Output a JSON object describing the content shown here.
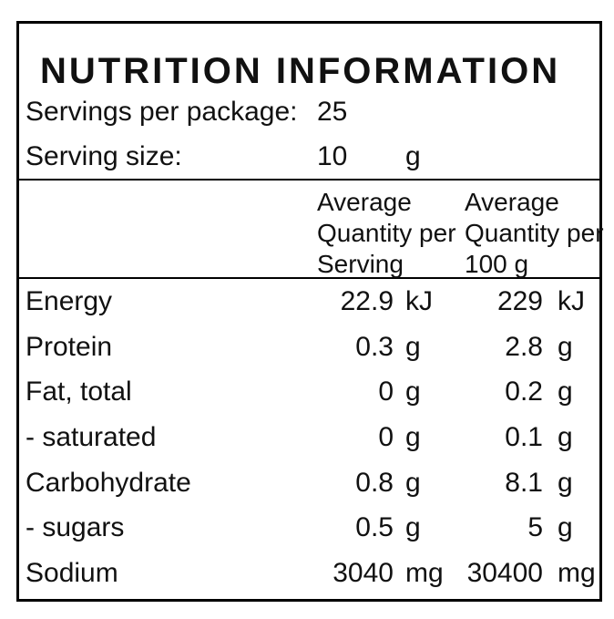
{
  "label": {
    "title": "NUTRITION INFORMATION",
    "servings_per_package": {
      "label": "Servings per package:",
      "value": "25"
    },
    "serving_size": {
      "label": "Serving size:",
      "value": "10",
      "unit": "g"
    },
    "columns": {
      "per_serving": {
        "line1": "Average",
        "line2": "Quantity per",
        "line3": "Serving"
      },
      "per_100g": {
        "line1": "Average",
        "line2": "Quantity per",
        "line3": "100 g"
      }
    },
    "colors": {
      "text": "#111111",
      "border": "#000000",
      "background": "#ffffff"
    }
  },
  "table": {
    "rows": [
      {
        "name": "Energy",
        "qty_per_serving": "22.9",
        "unit_per_serving": "kJ",
        "qty_per_100g": "229",
        "unit_per_100g": "kJ"
      },
      {
        "name": "Protein",
        "qty_per_serving": "0.3",
        "unit_per_serving": "g",
        "qty_per_100g": "2.8",
        "unit_per_100g": "g"
      },
      {
        "name": "Fat, total",
        "qty_per_serving": "0",
        "unit_per_serving": "g",
        "qty_per_100g": "0.2",
        "unit_per_100g": "g"
      },
      {
        "name": "- saturated",
        "qty_per_serving": "0",
        "unit_per_serving": "g",
        "qty_per_100g": "0.1",
        "unit_per_100g": "g"
      },
      {
        "name": "Carbohydrate",
        "qty_per_serving": "0.8",
        "unit_per_serving": "g",
        "qty_per_100g": "8.1",
        "unit_per_100g": "g"
      },
      {
        "name": "- sugars",
        "qty_per_serving": "0.5",
        "unit_per_serving": "g",
        "qty_per_100g": "5",
        "unit_per_100g": "g"
      },
      {
        "name": "Sodium",
        "qty_per_serving": "3040",
        "unit_per_serving": "mg",
        "qty_per_100g": "30400",
        "unit_per_100g": "mg"
      }
    ]
  }
}
